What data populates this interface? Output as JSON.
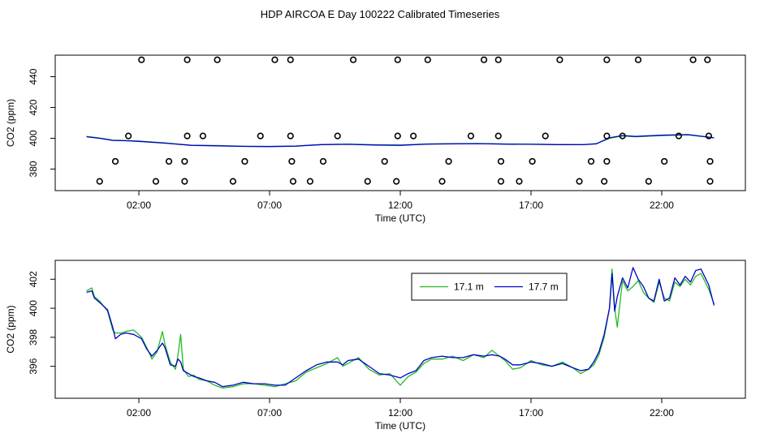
{
  "title": "HDP AIRCOA E  Day 100222  Calibrated Timeseries",
  "colors": {
    "green": "#22bb22",
    "blue": "#0000cc",
    "axis": "#000000"
  },
  "chart_data": [
    {
      "type": "line",
      "panel": "top",
      "xlabel": "Time (UTC)",
      "ylabel": "CO2 (ppm)",
      "x_unit": "hours UTC",
      "xlim": [
        -1.2,
        25.2
      ],
      "ylim": [
        366,
        454
      ],
      "xticks": [
        2,
        7,
        12,
        17,
        22
      ],
      "xtick_labels": [
        "02:00",
        "07:00",
        "12:00",
        "17:00",
        "22:00"
      ],
      "yticks": [
        380,
        400,
        420,
        440
      ],
      "ytick_labels": [
        "380",
        "400",
        "420",
        "440"
      ],
      "grid": false,
      "series": [
        {
          "color": "#22bb22",
          "x": [
            0,
            0.5,
            1,
            1.5,
            2,
            3,
            4,
            5,
            6,
            7,
            8,
            9,
            10,
            11,
            12,
            13,
            14,
            15,
            16,
            17,
            18,
            19,
            19.5,
            20,
            20.5,
            21,
            22,
            23,
            24
          ],
          "y": [
            401.2,
            400.2,
            398.8,
            398.5,
            398.2,
            397.0,
            395.5,
            395.3,
            394.8,
            394.7,
            395.0,
            396.0,
            396.2,
            395.8,
            395.6,
            396.3,
            396.5,
            396.6,
            396.3,
            396.2,
            396.0,
            396.0,
            396.5,
            400.0,
            401.5,
            401.0,
            401.8,
            402.2,
            400.3
          ]
        },
        {
          "color": "#0000cc",
          "x": [
            0,
            0.5,
            1,
            1.5,
            2,
            3,
            4,
            5,
            6,
            7,
            8,
            9,
            10,
            11,
            12,
            13,
            14,
            15,
            16,
            17,
            18,
            19,
            19.5,
            20,
            20.5,
            21,
            22,
            23,
            24
          ],
          "y": [
            401.0,
            400.0,
            398.6,
            398.4,
            398.0,
            396.8,
            395.4,
            395.1,
            394.7,
            394.6,
            394.9,
            395.9,
            396.1,
            395.6,
            395.4,
            396.2,
            396.4,
            396.5,
            396.2,
            396.1,
            395.9,
            395.8,
            396.4,
            400.3,
            401.8,
            401.2,
            402.0,
            402.4,
            400.3
          ]
        }
      ],
      "markers": {
        "shape": "circle",
        "x": [
          2.1,
          3.85,
          5.0,
          7.2,
          7.8,
          10.2,
          11.9,
          13.05,
          15.2,
          15.75,
          18.1,
          19.9,
          21.1,
          23.2,
          23.75,
          1.6,
          3.85,
          4.45,
          6.65,
          7.8,
          9.6,
          11.9,
          12.5,
          14.7,
          15.75,
          17.55,
          19.9,
          20.5,
          22.65,
          23.8,
          1.1,
          3.15,
          3.75,
          6.05,
          7.85,
          9.05,
          11.4,
          13.85,
          15.85,
          17.05,
          19.3,
          19.9,
          22.1,
          23.85,
          0.5,
          2.65,
          3.75,
          5.6,
          7.9,
          8.55,
          10.75,
          11.85,
          13.6,
          15.85,
          16.55,
          18.85,
          19.8,
          21.5,
          23.85
        ],
        "y": [
          451,
          451,
          451,
          451,
          451,
          451,
          451,
          451,
          451,
          451,
          451,
          451,
          451,
          451,
          451,
          401.5,
          401.5,
          401.5,
          401.5,
          401.5,
          401.5,
          401.5,
          401.5,
          401.5,
          401.5,
          401.5,
          401.5,
          401.5,
          401.5,
          401.5,
          385,
          385,
          385,
          385,
          385,
          385,
          385,
          385,
          385,
          385,
          385,
          385,
          385,
          385,
          372,
          372,
          372,
          372,
          372,
          372,
          372,
          372,
          372,
          372,
          372,
          372,
          372,
          372,
          372
        ]
      }
    },
    {
      "type": "line",
      "panel": "bottom",
      "xlabel": "Time (UTC)",
      "ylabel": "CO2 (ppm)",
      "x_unit": "hours UTC",
      "xlim": [
        -1.2,
        25.2
      ],
      "ylim": [
        393.8,
        403.3
      ],
      "xticks": [
        2,
        7,
        12,
        17,
        22
      ],
      "xtick_labels": [
        "02:00",
        "07:00",
        "12:00",
        "17:00",
        "22:00"
      ],
      "yticks": [
        396,
        398,
        400,
        402
      ],
      "ytick_labels": [
        "396",
        "398",
        "400",
        "402"
      ],
      "grid": false,
      "legend": {
        "placement": "top-right"
      },
      "series": [
        {
          "name": "17.1 m",
          "color": "#22bb22",
          "x": [
            0,
            0.2,
            0.3,
            0.5,
            0.8,
            1.0,
            1.1,
            1.3,
            1.5,
            1.8,
            2.1,
            2.3,
            2.5,
            2.7,
            2.9,
            3.0,
            3.2,
            3.4,
            3.5,
            3.6,
            3.7,
            3.9,
            4.1,
            4.3,
            4.6,
            4.9,
            5.2,
            5.6,
            6.0,
            6.4,
            6.8,
            7.2,
            7.6,
            8.0,
            8.4,
            8.8,
            9.2,
            9.6,
            9.8,
            10.0,
            10.4,
            10.8,
            11.2,
            11.6,
            12.0,
            12.3,
            12.6,
            12.9,
            13.2,
            13.6,
            14.0,
            14.4,
            14.8,
            15.2,
            15.5,
            15.8,
            16.0,
            16.3,
            16.6,
            17.0,
            17.4,
            17.8,
            18.2,
            18.6,
            18.9,
            19.2,
            19.4,
            19.6,
            19.8,
            20.0,
            20.1,
            20.2,
            20.3,
            20.5,
            20.7,
            20.9,
            21.1,
            21.3,
            21.5,
            21.7,
            21.9,
            22.1,
            22.3,
            22.5,
            22.7,
            22.9,
            23.1,
            23.3,
            23.5,
            23.8,
            24.0
          ],
          "y": [
            401.2,
            401.4,
            400.8,
            400.5,
            399.8,
            398.5,
            398.3,
            398.3,
            398.4,
            398.5,
            398.0,
            397.3,
            396.5,
            397.0,
            398.4,
            397.5,
            396.3,
            395.8,
            396.8,
            398.2,
            395.8,
            395.3,
            395.4,
            395.1,
            395.0,
            394.7,
            394.5,
            394.6,
            394.8,
            394.8,
            394.7,
            394.6,
            394.8,
            395.0,
            395.6,
            395.9,
            396.2,
            396.6,
            396.0,
            396.2,
            396.6,
            395.8,
            395.4,
            395.5,
            394.7,
            395.3,
            395.6,
            396.2,
            396.5,
            396.5,
            396.7,
            396.4,
            396.8,
            396.6,
            397.1,
            396.7,
            396.4,
            395.8,
            395.9,
            396.4,
            396.1,
            396.0,
            396.3,
            395.9,
            395.5,
            395.8,
            396.1,
            396.8,
            398.0,
            400.0,
            402.7,
            400.0,
            398.7,
            401.9,
            401.2,
            401.5,
            401.9,
            401.1,
            400.7,
            400.4,
            401.8,
            400.7,
            400.5,
            401.8,
            401.5,
            402.0,
            401.6,
            402.2,
            402.4,
            401.3,
            400.3
          ]
        },
        {
          "name": "17.7 m",
          "color": "#0000cc",
          "x": [
            0,
            0.2,
            0.3,
            0.5,
            0.8,
            1.0,
            1.1,
            1.3,
            1.5,
            1.8,
            2.1,
            2.3,
            2.5,
            2.7,
            2.9,
            3.0,
            3.2,
            3.4,
            3.5,
            3.6,
            3.7,
            3.9,
            4.1,
            4.3,
            4.6,
            4.9,
            5.2,
            5.6,
            6.0,
            6.4,
            6.8,
            7.2,
            7.6,
            8.0,
            8.4,
            8.8,
            9.2,
            9.6,
            9.8,
            10.0,
            10.4,
            10.8,
            11.2,
            11.6,
            12.0,
            12.3,
            12.6,
            12.9,
            13.2,
            13.6,
            14.0,
            14.4,
            14.8,
            15.2,
            15.5,
            15.8,
            16.0,
            16.3,
            16.6,
            17.0,
            17.4,
            17.8,
            18.2,
            18.6,
            18.9,
            19.2,
            19.4,
            19.6,
            19.8,
            20.0,
            20.1,
            20.2,
            20.3,
            20.5,
            20.7,
            20.9,
            21.1,
            21.3,
            21.5,
            21.7,
            21.9,
            22.1,
            22.3,
            22.5,
            22.7,
            22.9,
            23.1,
            23.3,
            23.5,
            23.8,
            24.0
          ],
          "y": [
            401.1,
            401.2,
            400.7,
            400.4,
            399.9,
            398.7,
            397.9,
            398.2,
            398.3,
            398.2,
            397.9,
            397.2,
            396.7,
            397.1,
            397.6,
            397.3,
            396.1,
            396.0,
            396.5,
            396.3,
            395.7,
            395.5,
            395.3,
            395.2,
            395.0,
            394.9,
            394.6,
            394.7,
            394.9,
            394.8,
            394.8,
            394.7,
            394.7,
            395.2,
            395.7,
            396.1,
            396.3,
            396.3,
            396.1,
            396.4,
            396.5,
            396.0,
            395.5,
            395.4,
            395.2,
            395.5,
            395.7,
            396.4,
            396.6,
            396.7,
            396.6,
            396.6,
            396.8,
            396.7,
            396.8,
            396.7,
            396.5,
            396.1,
            396.1,
            396.3,
            396.2,
            396.0,
            396.2,
            395.9,
            395.7,
            395.8,
            396.3,
            397.0,
            398.2,
            400.0,
            402.4,
            399.8,
            400.8,
            402.1,
            401.4,
            402.8,
            402.0,
            401.5,
            400.7,
            400.5,
            402.0,
            400.5,
            400.7,
            402.1,
            401.6,
            402.2,
            401.8,
            402.6,
            402.7,
            401.6,
            400.2
          ]
        }
      ]
    }
  ]
}
